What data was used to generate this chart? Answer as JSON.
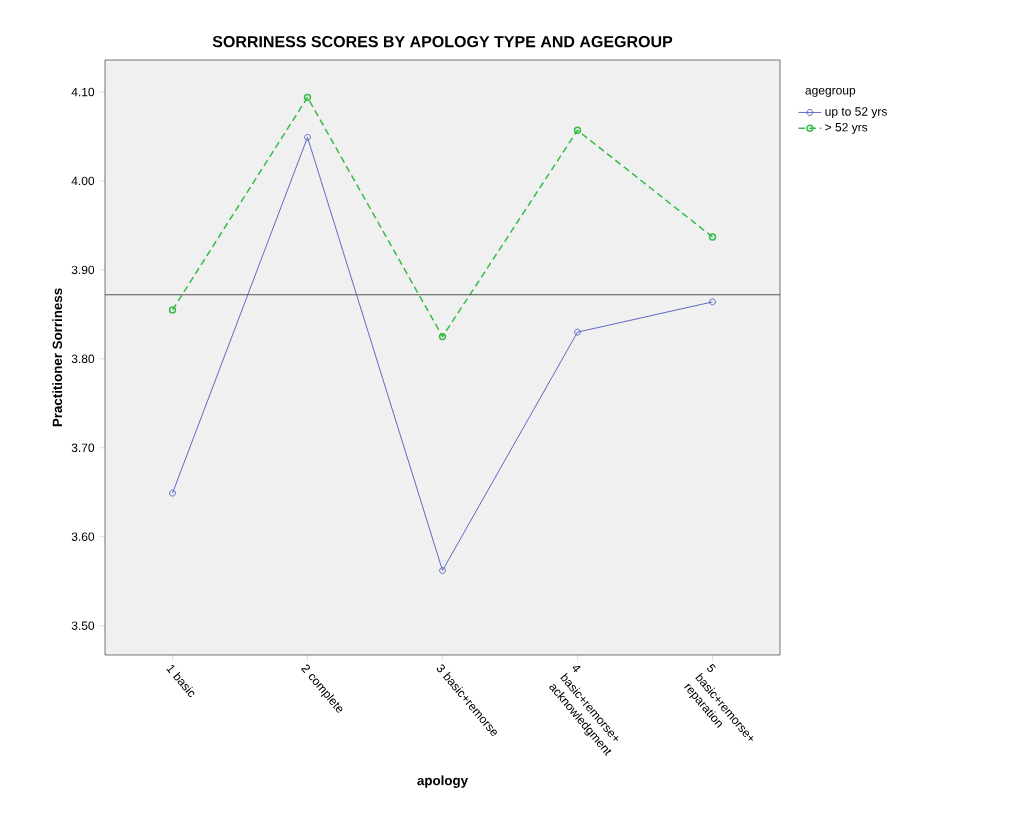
{
  "chart_data": {
    "type": "line",
    "title": "SORRINESS SCORES BY APOLOGY TYPE AND AGEGROUP",
    "xlabel": "apology",
    "ylabel": "Practitioner Sorriness",
    "legend_title": "agegroup",
    "categories": [
      "1 basic",
      "2 complete",
      "3 basic+remorse",
      "4 basic+remorse+ acknowledgment",
      "5 basic+remorse+ reparation"
    ],
    "series": [
      {
        "name": "up to 52 yrs",
        "color": "#5060c0",
        "line_style": "solid",
        "values": [
          3.649,
          4.049,
          3.562,
          3.83,
          3.864
        ]
      },
      {
        "name": "> 52 yrs",
        "color": "#33bb44",
        "line_style": "dashed",
        "values": [
          3.855,
          4.094,
          3.825,
          4.057,
          3.937
        ]
      }
    ],
    "ylim": [
      3.467,
      4.136
    ],
    "yticks": [
      {
        "value": 3.5,
        "label": "3.50"
      },
      {
        "value": 3.6,
        "label": "3.60"
      },
      {
        "value": 3.7,
        "label": "3.70"
      },
      {
        "value": 3.8,
        "label": "3.80"
      },
      {
        "value": 3.9,
        "label": "3.90"
      },
      {
        "value": 4.0,
        "label": "4.00"
      },
      {
        "value": 4.1,
        "label": "4.10"
      }
    ],
    "ref_lines": [
      {
        "axis": "y",
        "value": 3.872,
        "color": "#555555"
      }
    ],
    "marker": "circle",
    "legend": "top right",
    "grid": false
  }
}
